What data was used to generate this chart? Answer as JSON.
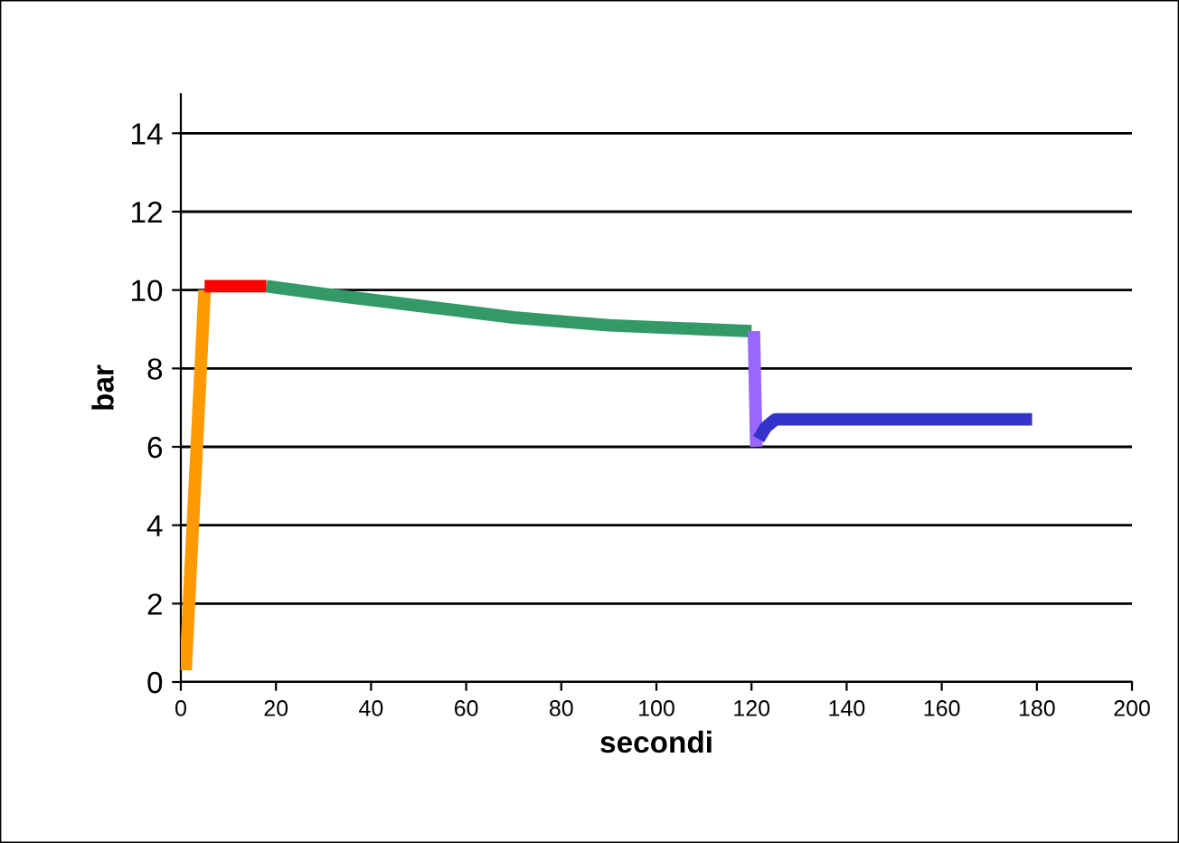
{
  "chart_data": {
    "type": "line",
    "xlabel": "secondi",
    "ylabel": "bar",
    "xlim": [
      0,
      200
    ],
    "ylim": [
      0,
      15
    ],
    "xticks": [
      0,
      20,
      40,
      60,
      80,
      100,
      120,
      140,
      160,
      180,
      200
    ],
    "yticks": [
      0,
      2,
      4,
      6,
      8,
      10,
      12,
      14
    ],
    "grid": "y",
    "legend": false,
    "marker": "none",
    "line_style": "solid",
    "series": [
      {
        "color": "#ff9900",
        "x": [
          1,
          5
        ],
        "values": [
          0.3,
          10
        ]
      },
      {
        "color": "#ff0000",
        "x": [
          5,
          18
        ],
        "values": [
          10.1,
          10.1
        ]
      },
      {
        "color": "#339966",
        "x": [
          18,
          30,
          40,
          50,
          60,
          70,
          80,
          90,
          100,
          110,
          120
        ],
        "values": [
          10.1,
          9.9,
          9.75,
          9.6,
          9.45,
          9.3,
          9.2,
          9.1,
          9.05,
          9.0,
          8.95
        ]
      },
      {
        "color": "#9966ff",
        "x": [
          120.5,
          121
        ],
        "values": [
          8.95,
          6.0
        ]
      },
      {
        "color": "#3333cc",
        "x": [
          121.5,
          123,
          125,
          179
        ],
        "values": [
          6.2,
          6.5,
          6.7,
          6.7
        ]
      }
    ]
  }
}
